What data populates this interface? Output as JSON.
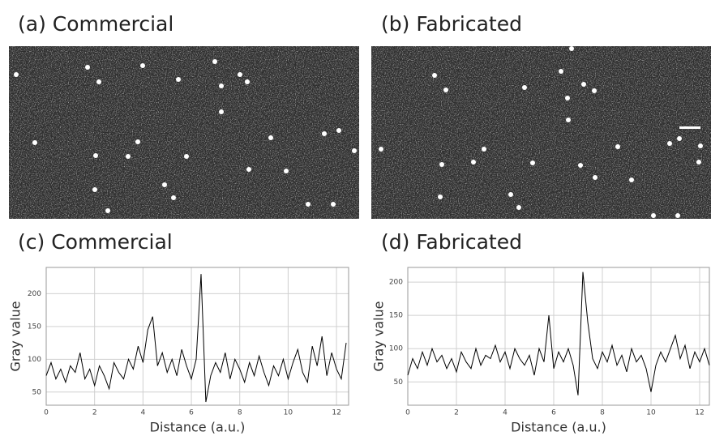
{
  "images": [
    {
      "label": "(a) Commercial"
    },
    {
      "label": "(b) Fabricated"
    }
  ],
  "chart_data": [
    {
      "type": "line",
      "title": "(c) Commercial",
      "ylabel": "Gray value",
      "xlabel": "Distance (a.u.)",
      "color": "#000000",
      "grid": true,
      "xlim": [
        0,
        12.5
      ],
      "ylim": [
        30,
        240
      ],
      "xticks": [
        0,
        2,
        4,
        6,
        8,
        10,
        12
      ],
      "yticks": [
        50,
        100,
        150,
        200
      ],
      "x": [
        0,
        0.2,
        0.4,
        0.6,
        0.8,
        1,
        1.2,
        1.4,
        1.6,
        1.8,
        2,
        2.2,
        2.4,
        2.6,
        2.8,
        3,
        3.2,
        3.4,
        3.6,
        3.8,
        4,
        4.2,
        4.4,
        4.6,
        4.8,
        5,
        5.2,
        5.4,
        5.6,
        5.8,
        6,
        6.2,
        6.4,
        6.6,
        6.8,
        7,
        7.2,
        7.4,
        7.6,
        7.8,
        8,
        8.2,
        8.4,
        8.6,
        8.8,
        9,
        9.2,
        9.4,
        9.6,
        9.8,
        10,
        10.2,
        10.4,
        10.6,
        10.8,
        11,
        11.2,
        11.4,
        11.6,
        11.8,
        12,
        12.2,
        12.4
      ],
      "values": [
        75,
        95,
        70,
        85,
        65,
        90,
        80,
        110,
        70,
        85,
        60,
        90,
        75,
        55,
        95,
        80,
        70,
        100,
        85,
        120,
        95,
        145,
        165,
        90,
        110,
        80,
        100,
        75,
        115,
        90,
        70,
        100,
        230,
        35,
        75,
        95,
        80,
        110,
        70,
        100,
        85,
        65,
        95,
        75,
        105,
        80,
        60,
        90,
        75,
        100,
        70,
        95,
        115,
        80,
        65,
        120,
        90,
        135,
        75,
        110,
        85,
        70,
        125
      ]
    },
    {
      "type": "line",
      "title": "(d) Fabricated",
      "ylabel": "Gray value",
      "xlabel": "Distance (a.u.)",
      "color": "#000000",
      "grid": true,
      "xlim": [
        0,
        12.4
      ],
      "ylim": [
        15,
        222
      ],
      "xticks": [
        0,
        2,
        4,
        6,
        8,
        10,
        12
      ],
      "yticks": [
        50,
        100,
        150,
        200
      ],
      "x": [
        0,
        0.2,
        0.4,
        0.6,
        0.8,
        1,
        1.2,
        1.4,
        1.6,
        1.8,
        2,
        2.2,
        2.4,
        2.6,
        2.8,
        3,
        3.2,
        3.4,
        3.6,
        3.8,
        4,
        4.2,
        4.4,
        4.6,
        4.8,
        5,
        5.2,
        5.4,
        5.6,
        5.8,
        6,
        6.2,
        6.4,
        6.6,
        6.8,
        7,
        7.2,
        7.4,
        7.6,
        7.8,
        8,
        8.2,
        8.4,
        8.6,
        8.8,
        9,
        9.2,
        9.4,
        9.6,
        9.8,
        10,
        10.2,
        10.4,
        10.6,
        10.8,
        11,
        11.2,
        11.4,
        11.6,
        11.8,
        12,
        12.2,
        12.4
      ],
      "values": [
        60,
        85,
        70,
        95,
        75,
        100,
        80,
        90,
        70,
        85,
        65,
        95,
        80,
        70,
        100,
        75,
        90,
        85,
        105,
        80,
        95,
        70,
        100,
        85,
        75,
        90,
        60,
        100,
        80,
        150,
        70,
        95,
        80,
        100,
        75,
        30,
        215,
        140,
        85,
        70,
        95,
        80,
        105,
        75,
        90,
        65,
        100,
        80,
        90,
        70,
        35,
        75,
        95,
        80,
        100,
        120,
        85,
        105,
        70,
        95,
        80,
        100,
        75
      ]
    }
  ]
}
